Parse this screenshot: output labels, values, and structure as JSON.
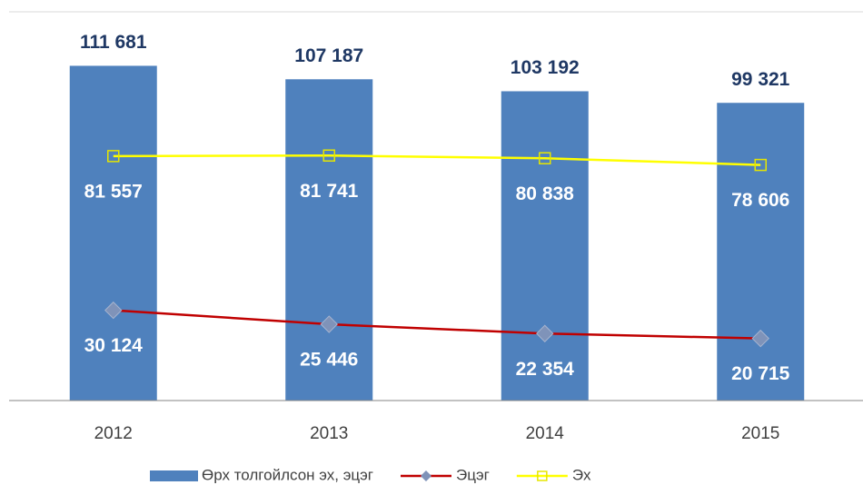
{
  "chart_data": {
    "type": "bar",
    "categories": [
      "2012",
      "2013",
      "2014",
      "2015"
    ],
    "ylim": [
      0,
      120000
    ],
    "series": [
      {
        "name": "Өрх толгойлсон эх, эцэг",
        "type": "bar",
        "color": "#4f81bd",
        "values": [
          111681,
          107187,
          103192,
          99321
        ],
        "value_labels": [
          "111 681",
          "107 187",
          "103 192",
          "99 321"
        ]
      },
      {
        "name": "Эцэг",
        "type": "line",
        "color": "#c00000",
        "marker": "diamond",
        "marker_color": "#7f93b9",
        "values": [
          30124,
          25446,
          22354,
          20715
        ],
        "value_labels": [
          "30 124",
          "25 446",
          "22 354",
          "20 715"
        ]
      },
      {
        "name": "Эх",
        "type": "line",
        "color": "#ffff00",
        "marker": "square",
        "marker_color": "#e6e600",
        "values": [
          81557,
          81741,
          80838,
          78606
        ],
        "value_labels": [
          "81 557",
          "81 741",
          "80 838",
          "78 606"
        ]
      }
    ]
  }
}
